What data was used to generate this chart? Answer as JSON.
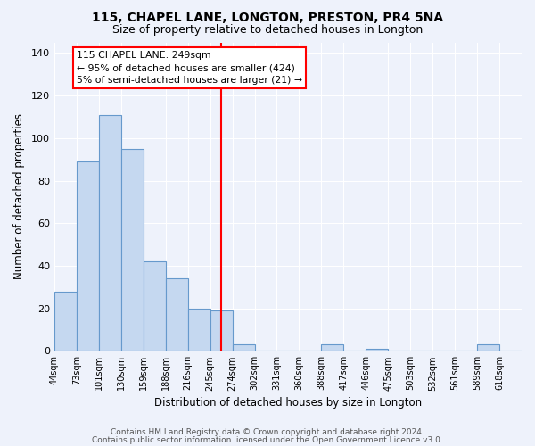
{
  "title": "115, CHAPEL LANE, LONGTON, PRESTON, PR4 5NA",
  "subtitle": "Size of property relative to detached houses in Longton",
  "xlabel": "Distribution of detached houses by size in Longton",
  "ylabel": "Number of detached properties",
  "bin_labels": [
    "44sqm",
    "73sqm",
    "101sqm",
    "130sqm",
    "159sqm",
    "188sqm",
    "216sqm",
    "245sqm",
    "274sqm",
    "302sqm",
    "331sqm",
    "360sqm",
    "388sqm",
    "417sqm",
    "446sqm",
    "475sqm",
    "503sqm",
    "532sqm",
    "561sqm",
    "589sqm",
    "618sqm"
  ],
  "bar_heights": [
    28,
    89,
    111,
    95,
    42,
    34,
    20,
    19,
    3,
    0,
    0,
    0,
    3,
    0,
    1,
    0,
    0,
    0,
    0,
    3,
    0
  ],
  "bar_color": "#c5d8f0",
  "bar_edge_color": "#6699cc",
  "vline_position": 7,
  "vline_color": "red",
  "annotation_title": "115 CHAPEL LANE: 249sqm",
  "annotation_line1": "← 95% of detached houses are smaller (424)",
  "annotation_line2": "5% of semi-detached houses are larger (21) →",
  "annotation_box_color": "white",
  "annotation_box_edge": "red",
  "ylim": [
    0,
    145
  ],
  "yticks": [
    0,
    20,
    40,
    60,
    80,
    100,
    120,
    140
  ],
  "footer1": "Contains HM Land Registry data © Crown copyright and database right 2024.",
  "footer2": "Contains public sector information licensed under the Open Government Licence v3.0.",
  "bg_color": "#eef2fb",
  "grid_color": "white",
  "title_fontsize": 10,
  "subtitle_fontsize": 9,
  "tick_fontsize": 7,
  "axis_label_fontsize": 8.5,
  "footer_fontsize": 6.5
}
